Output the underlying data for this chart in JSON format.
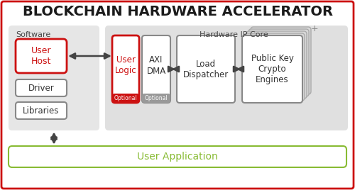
{
  "title": "BLOCKCHAIN HARDWARE ACCELERATOR",
  "title_fontsize": 13.5,
  "title_color": "#1a1a1a",
  "bg_color": "#ffffff",
  "outer_border_color": "#cc1111",
  "software_label": "Software",
  "hardware_label": "Hardware IP Core",
  "software_box_color": "#e6e6e6",
  "hardware_box_color": "#e0e0e0",
  "user_host_text": "User\nHost",
  "user_host_border": "#cc1111",
  "user_host_text_color": "#cc1111",
  "driver_text": "Driver",
  "libraries_text": "Libraries",
  "user_logic_text": "User\nLogic",
  "user_logic_border": "#cc1111",
  "user_logic_text_color": "#cc1111",
  "user_logic_optional": "Optional",
  "user_logic_optional_bg": "#cc1111",
  "axi_dma_text": "AXI\nDMA",
  "axi_dma_optional": "Optional",
  "axi_dma_optional_bg": "#999999",
  "load_dispatcher_text": "Load\nDispatcher",
  "public_key_text": "Public Key\nCrypto\nEngines",
  "user_app_text": "User Application",
  "user_app_border": "#88bb33",
  "user_app_text_color": "#88bb33",
  "arrow_color": "#444444",
  "plus_color": "#888888",
  "box_border_color": "#888888",
  "box_text_color": "#333333"
}
